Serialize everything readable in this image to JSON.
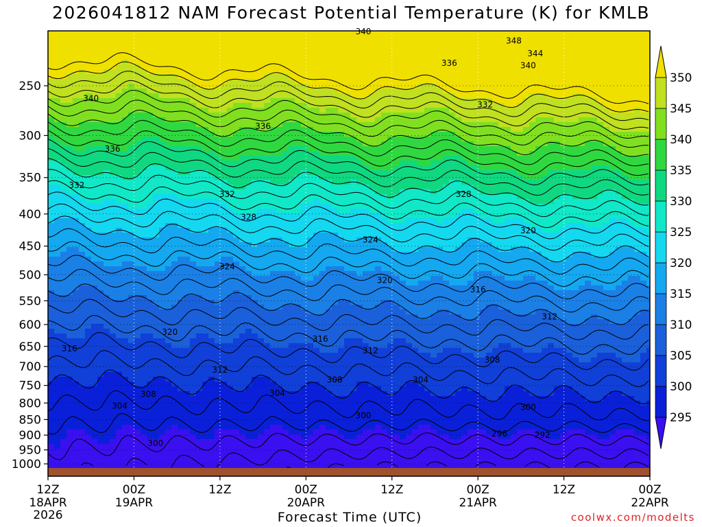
{
  "title": "2026041812 NAM Forecast Potential Temperature (K) for KMLB",
  "credit": "coolwx.com/modelts",
  "chart_data": {
    "type": "heatmap",
    "title": "2026041812 NAM Forecast Potential Temperature (K) for KMLB",
    "xlabel": "Forecast Time (UTC)",
    "ylabel": "",
    "x_range_hours": [
      0,
      84
    ],
    "x_ticks": [
      {
        "hour": 0,
        "label": "12Z",
        "sub": "18APR",
        "sub2": "2026"
      },
      {
        "hour": 12,
        "label": "00Z",
        "sub": "19APR",
        "sub2": ""
      },
      {
        "hour": 24,
        "label": "12Z",
        "sub": "",
        "sub2": ""
      },
      {
        "hour": 36,
        "label": "00Z",
        "sub": "20APR",
        "sub2": ""
      },
      {
        "hour": 48,
        "label": "12Z",
        "sub": "",
        "sub2": ""
      },
      {
        "hour": 60,
        "label": "00Z",
        "sub": "21APR",
        "sub2": ""
      },
      {
        "hour": 72,
        "label": "12Z",
        "sub": "",
        "sub2": ""
      },
      {
        "hour": 84,
        "label": "00Z",
        "sub": "22APR",
        "sub2": ""
      }
    ],
    "y_scale": "log-pressure",
    "y_range_hpa": [
      1000,
      200
    ],
    "y_ticks": [
      250,
      300,
      350,
      400,
      450,
      500,
      550,
      600,
      650,
      700,
      750,
      800,
      850,
      900,
      950,
      1000
    ],
    "colorbar": {
      "levels": [
        295,
        300,
        305,
        310,
        315,
        320,
        325,
        330,
        335,
        340,
        345,
        350
      ],
      "colors": [
        "#3a10f0",
        "#0a20d8",
        "#1040d8",
        "#1a60da",
        "#1a80e6",
        "#14a8f0",
        "#14d8f0",
        "#10e8c8",
        "#10d880",
        "#30d840",
        "#80e020",
        "#c0e020",
        "#f0e000"
      ]
    },
    "contour_labels": [
      {
        "hour": 44,
        "hpa": 205,
        "value": "340"
      },
      {
        "hour": 65,
        "hpa": 212,
        "value": "348"
      },
      {
        "hour": 68,
        "hpa": 222,
        "value": "344"
      },
      {
        "hour": 67,
        "hpa": 232,
        "value": "340"
      },
      {
        "hour": 56,
        "hpa": 230,
        "value": "336"
      },
      {
        "hour": 61,
        "hpa": 268,
        "value": "332"
      },
      {
        "hour": 6,
        "hpa": 262,
        "value": "340"
      },
      {
        "hour": 30,
        "hpa": 290,
        "value": "336"
      },
      {
        "hour": 9,
        "hpa": 315,
        "value": "336"
      },
      {
        "hour": 4,
        "hpa": 360,
        "value": "332"
      },
      {
        "hour": 25,
        "hpa": 372,
        "value": "332"
      },
      {
        "hour": 58,
        "hpa": 372,
        "value": "328"
      },
      {
        "hour": 28,
        "hpa": 405,
        "value": "328"
      },
      {
        "hour": 45,
        "hpa": 440,
        "value": "324"
      },
      {
        "hour": 67,
        "hpa": 425,
        "value": "320"
      },
      {
        "hour": 25,
        "hpa": 485,
        "value": "324"
      },
      {
        "hour": 47,
        "hpa": 510,
        "value": "320"
      },
      {
        "hour": 60,
        "hpa": 528,
        "value": "316"
      },
      {
        "hour": 70,
        "hpa": 583,
        "value": "312"
      },
      {
        "hour": 17,
        "hpa": 617,
        "value": "320"
      },
      {
        "hour": 38,
        "hpa": 633,
        "value": "316"
      },
      {
        "hour": 45,
        "hpa": 660,
        "value": "312"
      },
      {
        "hour": 3,
        "hpa": 655,
        "value": "316"
      },
      {
        "hour": 62,
        "hpa": 683,
        "value": "308"
      },
      {
        "hour": 24,
        "hpa": 708,
        "value": "312"
      },
      {
        "hour": 40,
        "hpa": 735,
        "value": "308"
      },
      {
        "hour": 52,
        "hpa": 735,
        "value": "304"
      },
      {
        "hour": 14,
        "hpa": 775,
        "value": "308"
      },
      {
        "hour": 32,
        "hpa": 772,
        "value": "304"
      },
      {
        "hour": 10,
        "hpa": 808,
        "value": "304"
      },
      {
        "hour": 44,
        "hpa": 837,
        "value": "300"
      },
      {
        "hour": 67,
        "hpa": 813,
        "value": "300"
      },
      {
        "hour": 15,
        "hpa": 927,
        "value": "300"
      },
      {
        "hour": 63,
        "hpa": 895,
        "value": "296"
      },
      {
        "hour": 69,
        "hpa": 900,
        "value": "292"
      }
    ]
  }
}
